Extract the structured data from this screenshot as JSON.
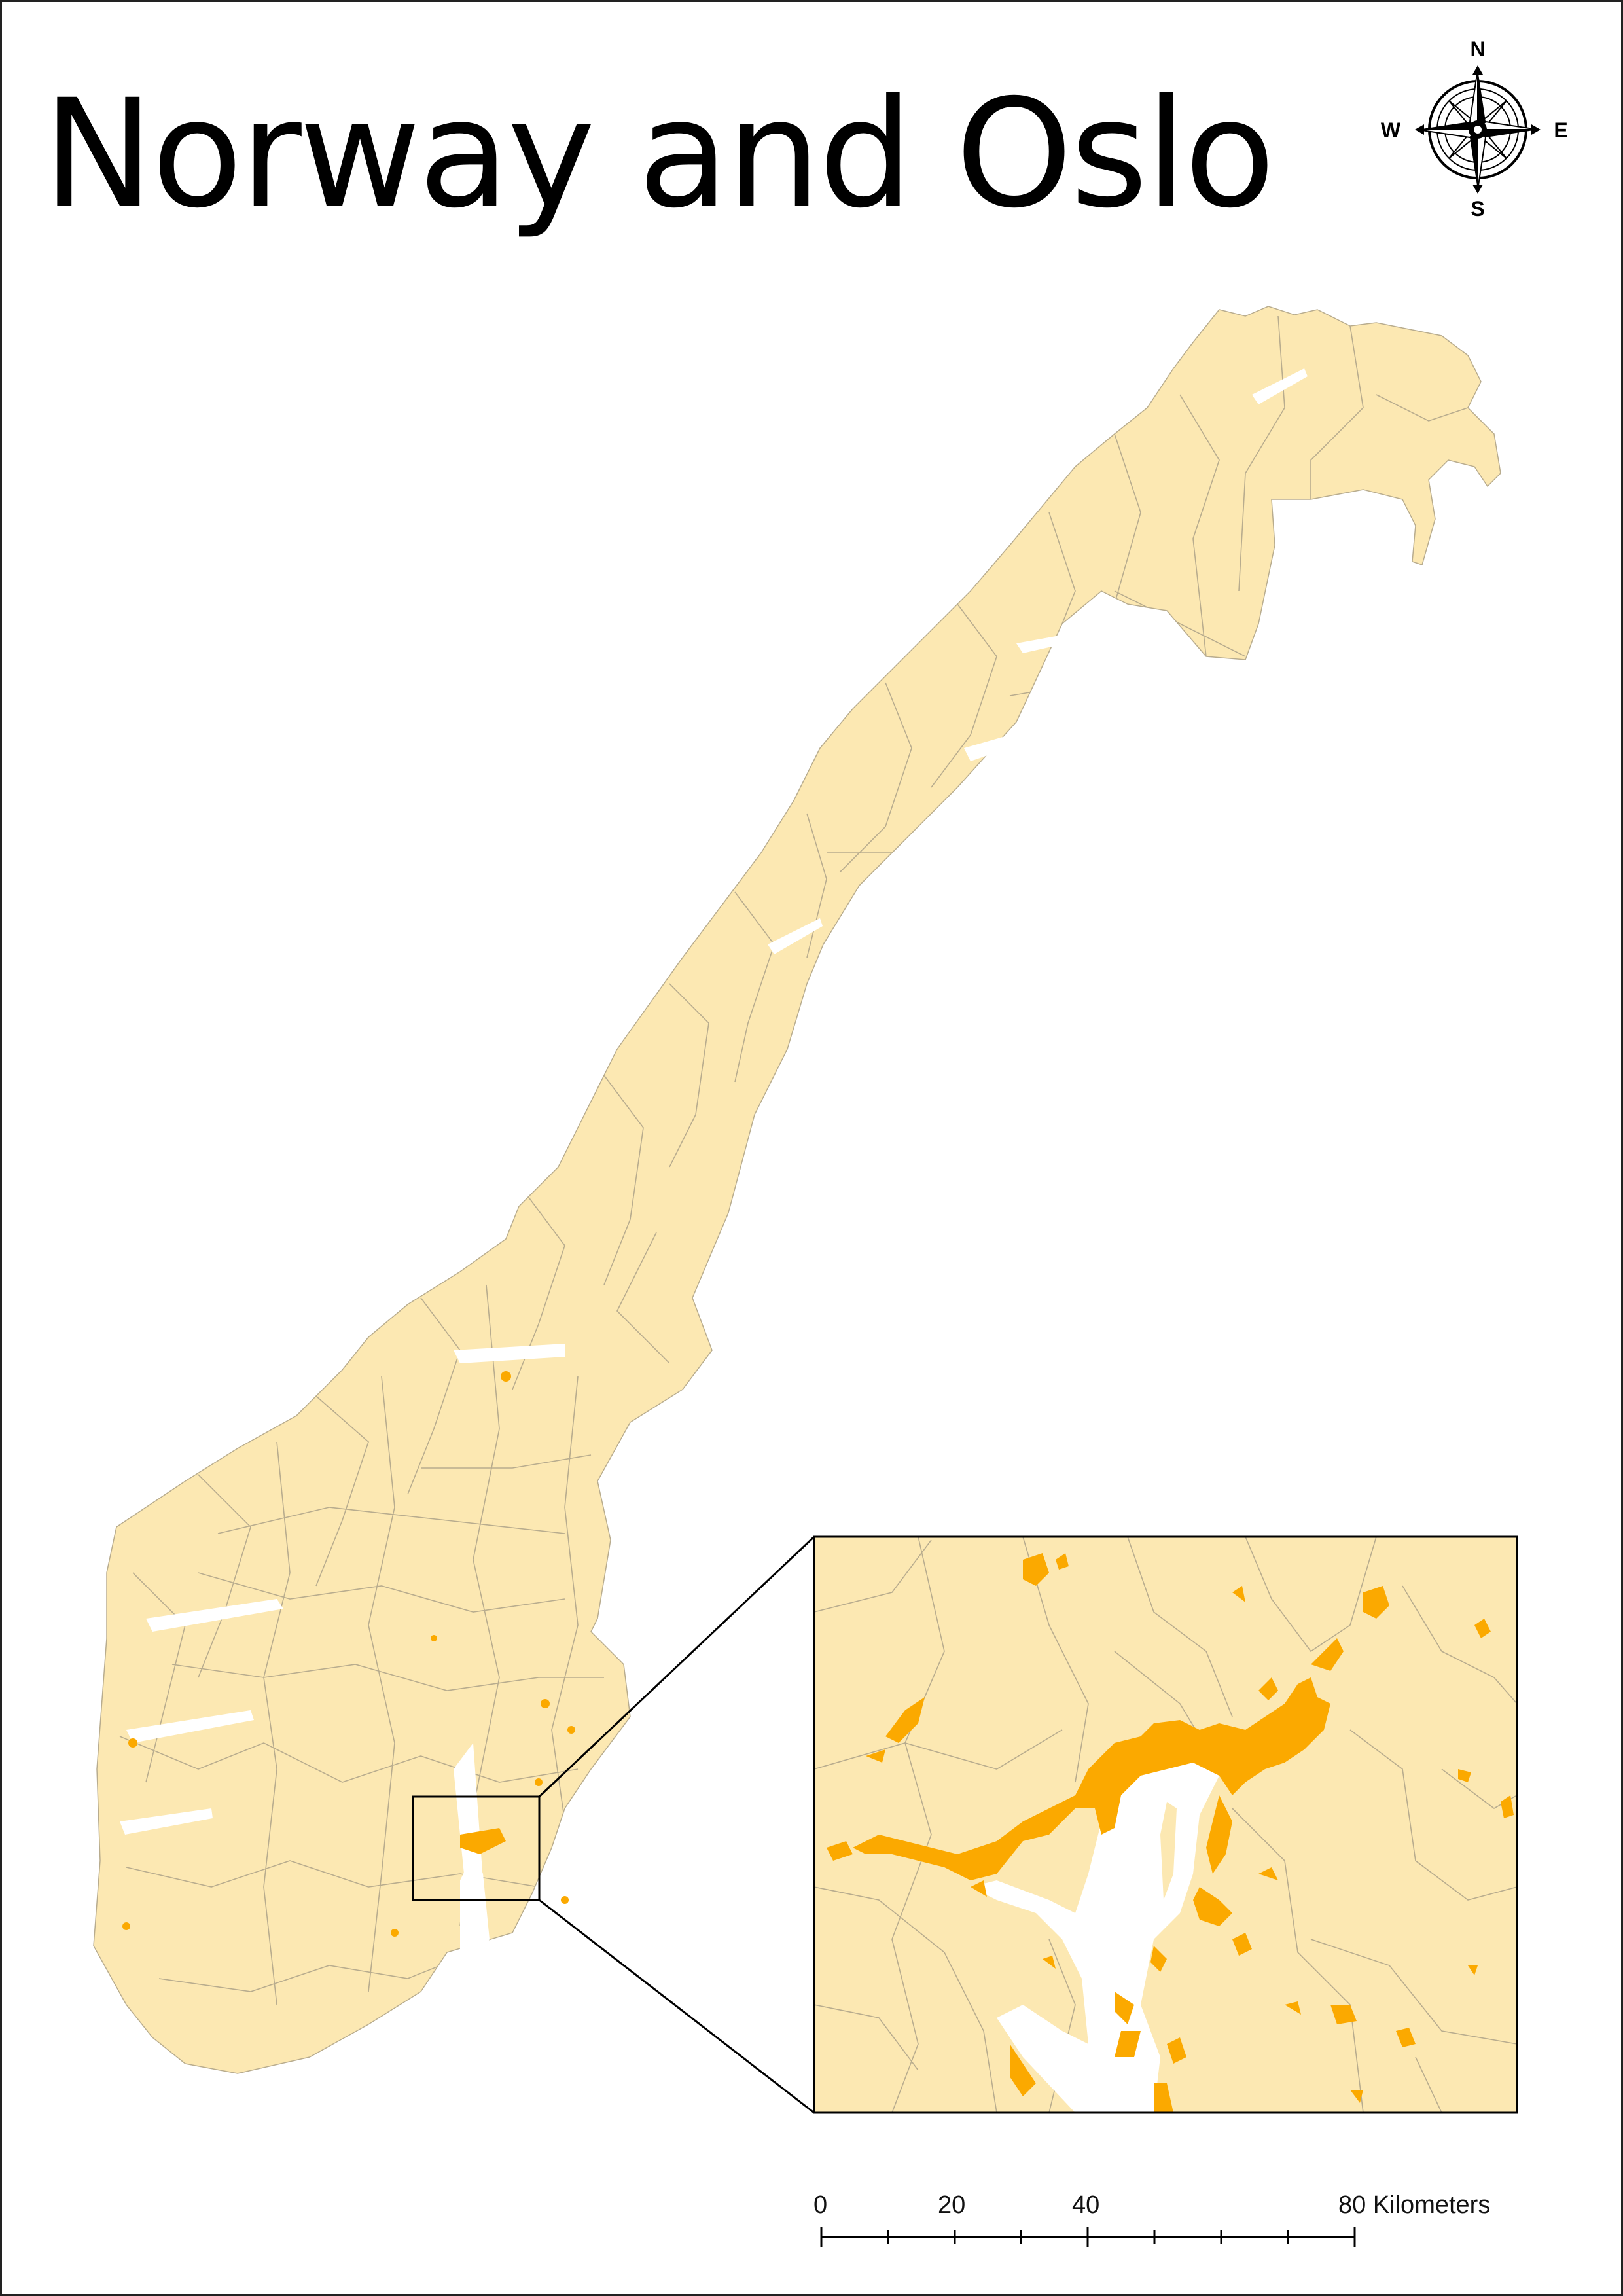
{
  "map": {
    "title": "Norway and Oslo",
    "colors": {
      "land": "#FCE8B2",
      "border": "#B8AC8E",
      "urban": "#FBA900",
      "water": "#FFFFFF",
      "frame": "#000000"
    },
    "compass": {
      "n": "N",
      "e": "E",
      "s": "S",
      "w": "W"
    },
    "scale_bar": {
      "labels": [
        "0",
        "20",
        "40",
        "80 Kilometers"
      ],
      "values_km": [
        0,
        20,
        40,
        80
      ],
      "unit": "Kilometers",
      "minor_step_km": 10
    },
    "inset": {
      "region": "Oslo"
    }
  }
}
